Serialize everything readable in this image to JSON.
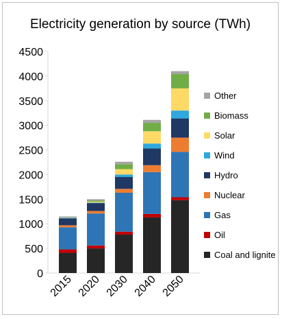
{
  "chart_data": {
    "type": "bar",
    "stacked": true,
    "title": "Electricity generation by source (TWh)",
    "xlabel": "",
    "ylabel": "",
    "categories": [
      "2015",
      "2020",
      "2030",
      "2040",
      "2050"
    ],
    "ylim": [
      0,
      4500
    ],
    "yticks": [
      "0",
      "500",
      "1000",
      "1500",
      "2000",
      "2500",
      "3000",
      "3500",
      "4000",
      "4500"
    ],
    "grid": false,
    "legend_position": "right",
    "series": [
      {
        "name": "Coal and lignite",
        "color": "#262626",
        "values": [
          410,
          500,
          780,
          1130,
          1480
        ]
      },
      {
        "name": "Oil",
        "color": "#c00000",
        "values": [
          70,
          60,
          60,
          70,
          60
        ]
      },
      {
        "name": "Gas",
        "color": "#2e75b6",
        "values": [
          450,
          650,
          790,
          850,
          920
        ]
      },
      {
        "name": "Nuclear",
        "color": "#ed7d31",
        "values": [
          40,
          50,
          80,
          140,
          290
        ]
      },
      {
        "name": "Hydro",
        "color": "#1f3864",
        "values": [
          140,
          160,
          240,
          340,
          390
        ]
      },
      {
        "name": "Wind",
        "color": "#2ea8df",
        "values": [
          10,
          10,
          50,
          100,
          160
        ]
      },
      {
        "name": "Solar",
        "color": "#ffd966",
        "values": [
          5,
          20,
          110,
          250,
          450
        ]
      },
      {
        "name": "Biomass",
        "color": "#70ad47",
        "values": [
          5,
          20,
          100,
          170,
          290
        ]
      },
      {
        "name": "Other",
        "color": "#a5a5a5",
        "values": [
          20,
          30,
          50,
          60,
          60
        ]
      }
    ]
  }
}
